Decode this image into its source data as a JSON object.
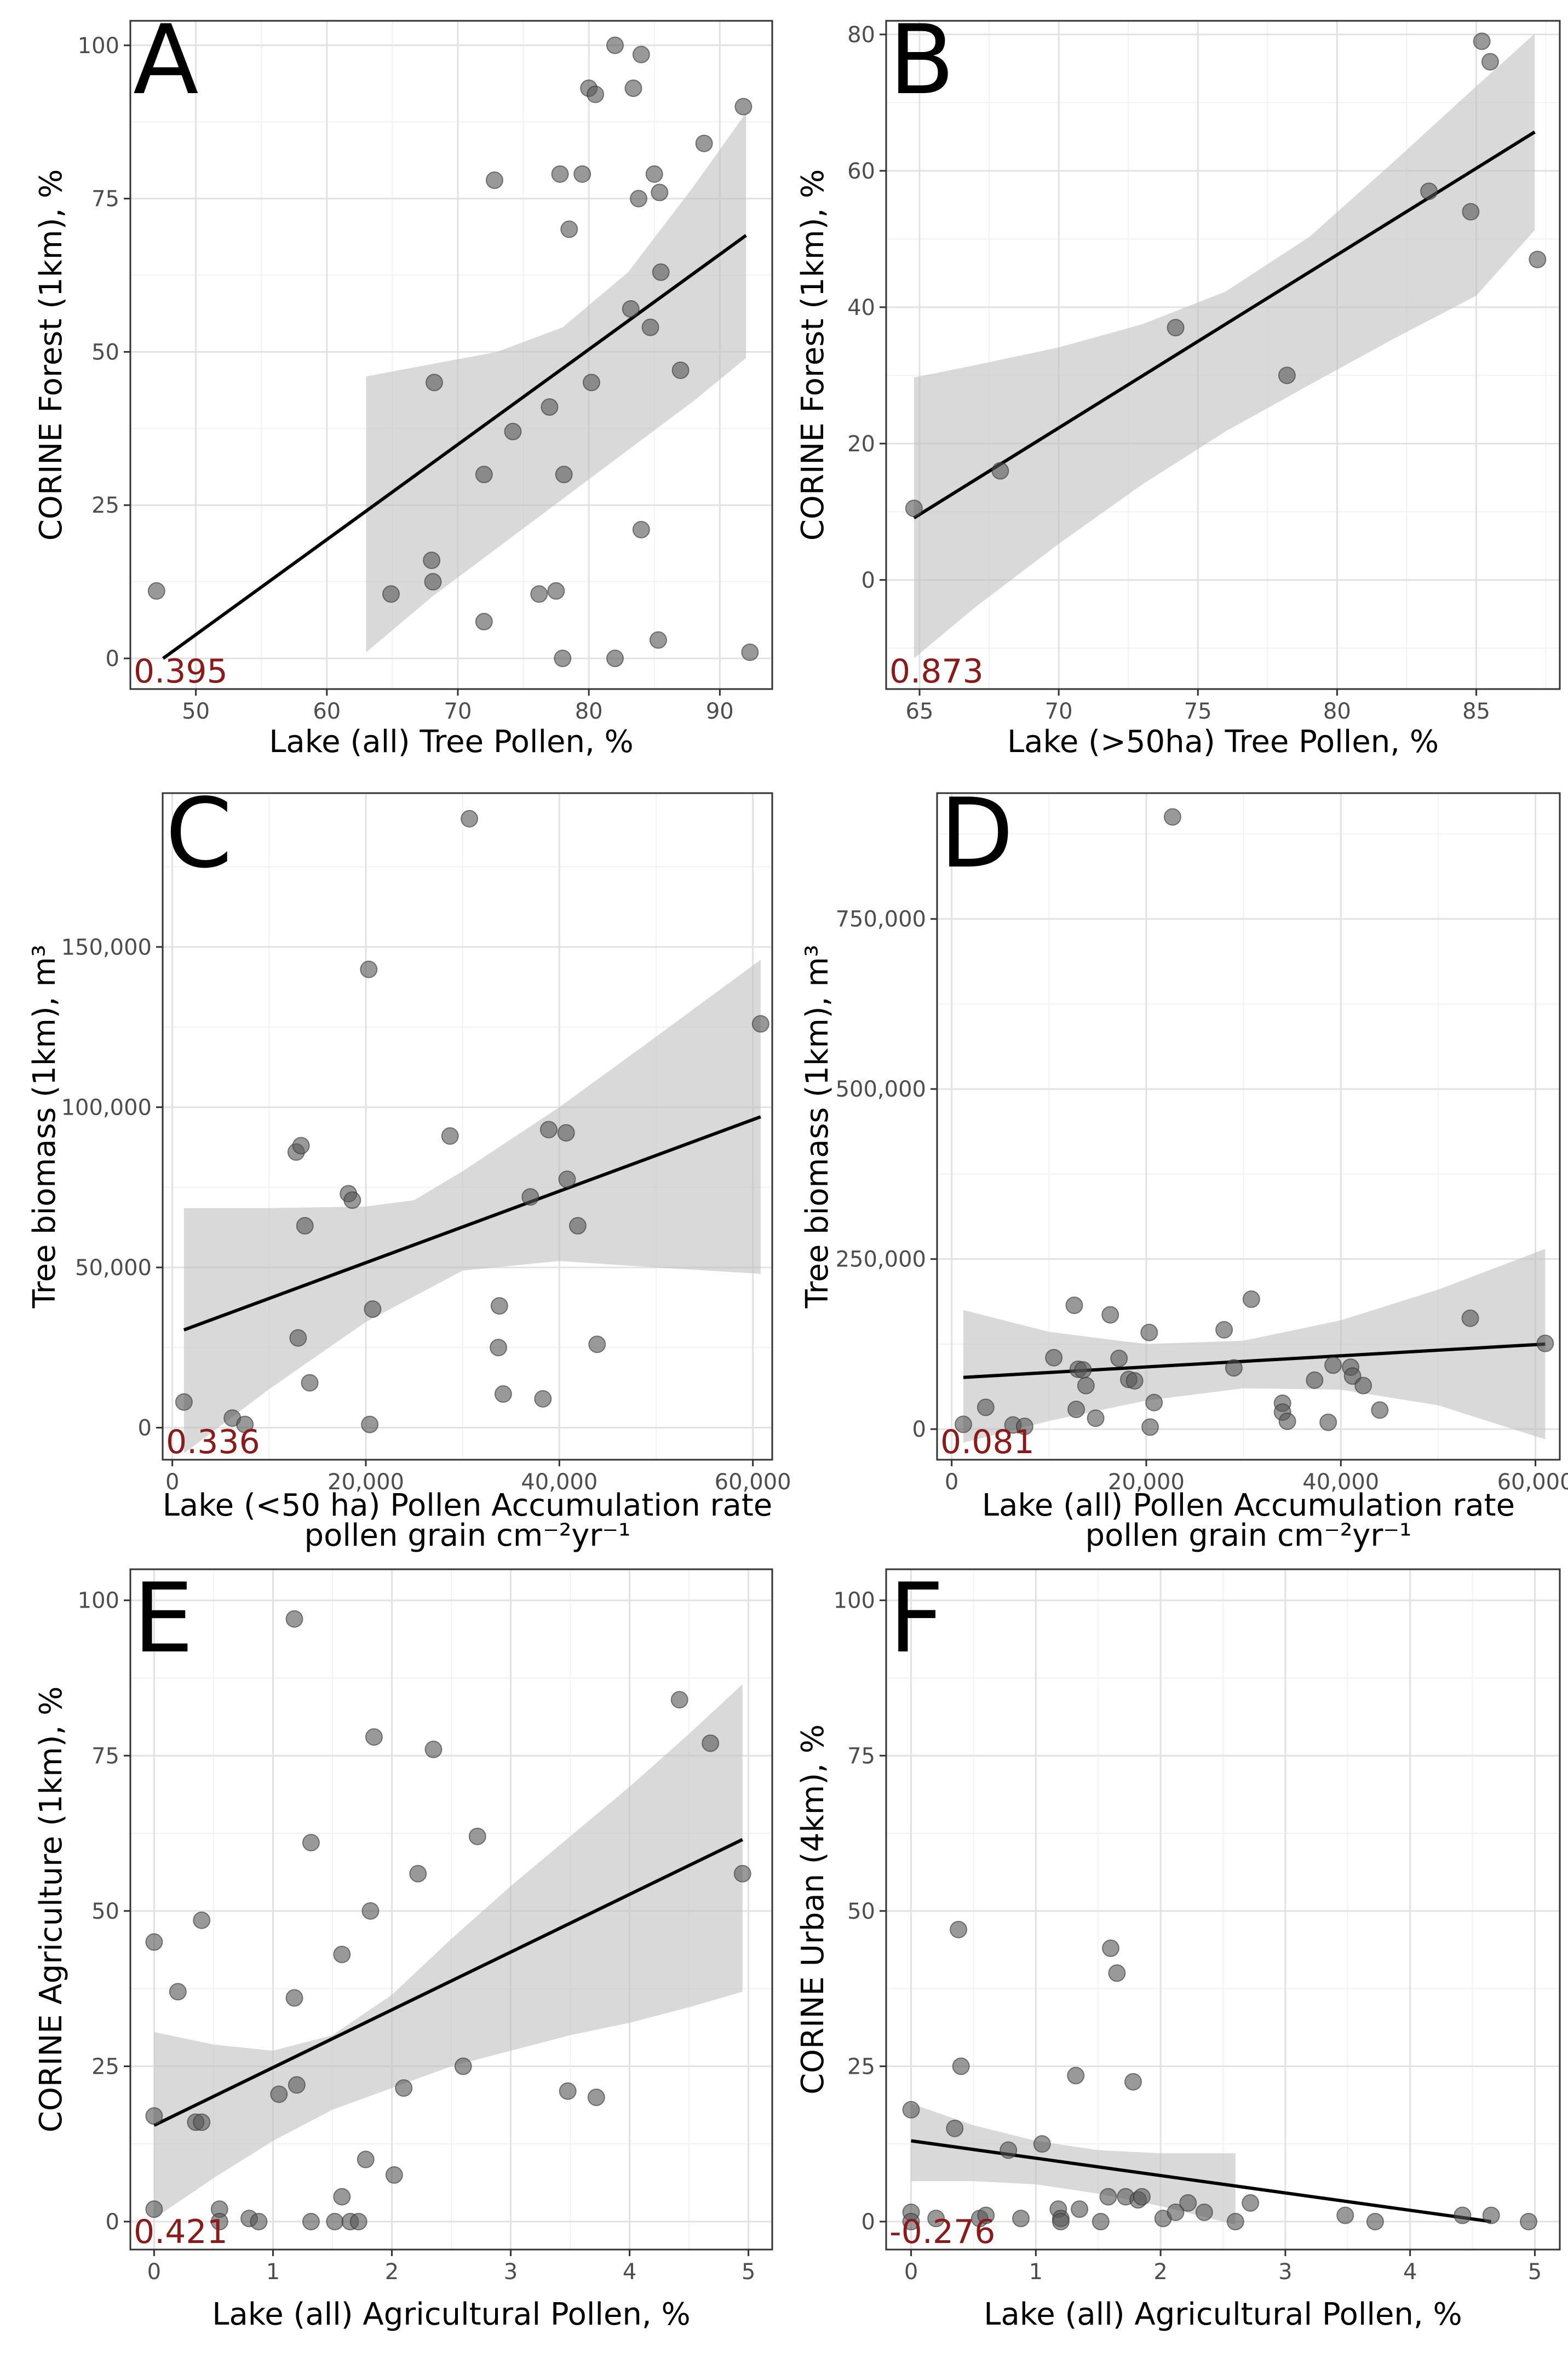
{
  "chart_data": [
    {
      "panel": "A",
      "type": "scatter",
      "xlabel": "Lake (all) Tree Pollen, %",
      "xlabel2": "",
      "ylabel": "CORINE Forest (1km), %",
      "xlim": [
        45,
        94
      ],
      "ylim": [
        -5,
        104
      ],
      "xticks": [
        50,
        60,
        70,
        80,
        90
      ],
      "yticks": [
        0,
        25,
        50,
        75,
        100
      ],
      "xtick_labels": [
        "50",
        "60",
        "70",
        "80",
        "90"
      ],
      "ytick_labels": [
        "0",
        "25",
        "50",
        "75",
        "100"
      ],
      "r": "0.395",
      "fit": {
        "x": [
          47.5,
          92
        ],
        "y": [
          0,
          69
        ]
      },
      "band": {
        "x": [
          63,
          68,
          73,
          78,
          83,
          88,
          92
        ],
        "upper": [
          46,
          48,
          50,
          54,
          63,
          77,
          89
        ],
        "lower": [
          1,
          10,
          18,
          26,
          34,
          42,
          49
        ]
      },
      "points": [
        [
          47,
          11
        ],
        [
          64.9,
          10.5
        ],
        [
          68,
          16
        ],
        [
          68.1,
          12.5
        ],
        [
          68.2,
          45
        ],
        [
          72,
          6
        ],
        [
          72,
          30
        ],
        [
          72.8,
          78
        ],
        [
          74.2,
          37
        ],
        [
          76.2,
          10.5
        ],
        [
          77,
          41
        ],
        [
          77.5,
          11
        ],
        [
          77.8,
          79
        ],
        [
          78,
          0
        ],
        [
          78.1,
          30
        ],
        [
          78.5,
          70
        ],
        [
          79.5,
          79
        ],
        [
          80,
          93
        ],
        [
          80.2,
          45
        ],
        [
          80.5,
          92
        ],
        [
          82,
          0
        ],
        [
          82,
          100
        ],
        [
          83.2,
          57
        ],
        [
          83.4,
          93
        ],
        [
          83.8,
          75
        ],
        [
          84,
          21
        ],
        [
          84,
          98.5
        ],
        [
          84.7,
          54
        ],
        [
          85,
          79
        ],
        [
          85.3,
          3
        ],
        [
          85.4,
          76
        ],
        [
          85.5,
          63
        ],
        [
          87,
          47
        ],
        [
          88.8,
          84
        ],
        [
          91.8,
          90
        ],
        [
          92.3,
          1
        ]
      ]
    },
    {
      "panel": "B",
      "type": "scatter",
      "xlabel": "Lake (>50ha) Tree Pollen, %",
      "xlabel2": "",
      "ylabel": "CORINE Forest (1km), %",
      "xlim": [
        63.8,
        88
      ],
      "ylim": [
        -16,
        82
      ],
      "xticks": [
        65,
        70,
        75,
        80,
        85
      ],
      "yticks": [
        0,
        20,
        40,
        60,
        80
      ],
      "xtick_labels": [
        "65",
        "70",
        "75",
        "80",
        "85"
      ],
      "ytick_labels": [
        "0",
        "20",
        "40",
        "60",
        "80"
      ],
      "r": "0.873",
      "fit": {
        "x": [
          64.8,
          87.1
        ],
        "y": [
          9.1,
          65.7
        ]
      },
      "band": {
        "x": [
          64.8,
          67,
          70,
          73,
          76,
          79,
          82,
          85,
          87.1
        ],
        "upper": [
          29.7,
          31.5,
          34.1,
          37.5,
          42.3,
          50.3,
          61.2,
          72.4,
          80.1
        ],
        "lower": [
          -11.5,
          -4,
          5.3,
          14,
          21.8,
          28.6,
          35.3,
          41.7,
          51.3
        ]
      },
      "points": [
        [
          64.8,
          10.5
        ],
        [
          67.9,
          16
        ],
        [
          74.2,
          37
        ],
        [
          78.2,
          30
        ],
        [
          83.3,
          57
        ],
        [
          84.8,
          54
        ],
        [
          85.2,
          79
        ],
        [
          85.5,
          76
        ],
        [
          87.2,
          47
        ]
      ]
    },
    {
      "panel": "C",
      "type": "scatter",
      "xlabel": "Lake (<50 ha) Pollen Accumulation rate",
      "xlabel2": "pollen grain cm⁻²yr⁻¹",
      "ylabel": "Tree biomass (1km), m³",
      "xlim": [
        -1000,
        62000
      ],
      "ylim": [
        -10000,
        198000
      ],
      "xticks": [
        0,
        20000,
        40000,
        60000
      ],
      "yticks": [
        0,
        50000,
        100000,
        150000
      ],
      "xtick_labels": [
        "0",
        "20,000",
        "40,000",
        "60,000"
      ],
      "ytick_labels": [
        "0",
        "50,000",
        "100,000",
        "150,000"
      ],
      "r": "0.336",
      "fit": {
        "x": [
          1200,
          60800
        ],
        "y": [
          30500,
          97000
        ]
      },
      "band": {
        "x": [
          1200,
          10000,
          20000,
          25000,
          30000,
          40000,
          50000,
          60800
        ],
        "upper": [
          68500,
          68500,
          69000,
          71000,
          80000,
          100000,
          122000,
          146000
        ],
        "lower": [
          -8000,
          12000,
          33000,
          41000,
          49000,
          52000,
          50000,
          48000
        ]
      },
      "points": [
        [
          1200,
          8000
        ],
        [
          6200,
          3000
        ],
        [
          7500,
          1000
        ],
        [
          12800,
          86000
        ],
        [
          13000,
          28000
        ],
        [
          13300,
          88000
        ],
        [
          13700,
          63000
        ],
        [
          14200,
          14000
        ],
        [
          18200,
          73000
        ],
        [
          18600,
          71000
        ],
        [
          20300,
          143000
        ],
        [
          20400,
          1000
        ],
        [
          20700,
          37000
        ],
        [
          28700,
          91000
        ],
        [
          30700,
          190000
        ],
        [
          33700,
          25000
        ],
        [
          33800,
          38000
        ],
        [
          34200,
          10500
        ],
        [
          37000,
          72000
        ],
        [
          38300,
          9000
        ],
        [
          38900,
          93000
        ],
        [
          40700,
          92000
        ],
        [
          40800,
          77500
        ],
        [
          41900,
          63000
        ],
        [
          43900,
          26000
        ],
        [
          60800,
          126000
        ]
      ]
    },
    {
      "panel": "D",
      "type": "scatter",
      "xlabel": "Lake (all) Pollen Accumulation rate",
      "xlabel2": "pollen grain cm⁻²yr⁻¹",
      "ylabel": "Tree biomass (1km), m³",
      "xlim": [
        -1500,
        62500
      ],
      "ylim": [
        -45000,
        935000
      ],
      "xticks": [
        0,
        20000,
        40000,
        60000
      ],
      "yticks": [
        0,
        250000,
        500000,
        750000
      ],
      "xtick_labels": [
        "0",
        "20,000",
        "40,000",
        "60,000"
      ],
      "ytick_labels": [
        "0",
        "250,000",
        "500,000",
        "750,000"
      ],
      "r": "0.081",
      "fit": {
        "x": [
          1200,
          61000
        ],
        "y": [
          76000,
          125000
        ]
      },
      "band": {
        "x": [
          1200,
          10000,
          20000,
          30000,
          40000,
          50000,
          61000
        ],
        "upper": [
          175000,
          143000,
          125000,
          130000,
          160000,
          205000,
          265000
        ],
        "lower": [
          -20000,
          12000,
          42000,
          60000,
          58000,
          35000,
          -15000
        ]
      },
      "points": [
        [
          1200,
          7000
        ],
        [
          3500,
          32000
        ],
        [
          6300,
          6000
        ],
        [
          7500,
          4000
        ],
        [
          10500,
          105000
        ],
        [
          12600,
          182000
        ],
        [
          12800,
          29000
        ],
        [
          13000,
          88000
        ],
        [
          13500,
          87000
        ],
        [
          13800,
          64000
        ],
        [
          14800,
          16000
        ],
        [
          16300,
          168000
        ],
        [
          17200,
          104000
        ],
        [
          18200,
          73000
        ],
        [
          18800,
          71000
        ],
        [
          20300,
          142000
        ],
        [
          20400,
          3000
        ],
        [
          20800,
          39000
        ],
        [
          22700,
          900000
        ],
        [
          28000,
          146000
        ],
        [
          29000,
          90000
        ],
        [
          30800,
          191000
        ],
        [
          34000,
          38000
        ],
        [
          34000,
          25000
        ],
        [
          34500,
          11500
        ],
        [
          37300,
          72000
        ],
        [
          38700,
          10000
        ],
        [
          39200,
          94000
        ],
        [
          41000,
          91000
        ],
        [
          41200,
          78000
        ],
        [
          42300,
          64000
        ],
        [
          44000,
          28000
        ],
        [
          53300,
          163000
        ],
        [
          61000,
          126000
        ]
      ]
    },
    {
      "panel": "E",
      "type": "scatter",
      "xlabel": "Lake (all) Agricultural Pollen, %",
      "xlabel2": "",
      "ylabel": "CORINE Agriculture (1km), %",
      "xlim": [
        -0.2,
        5.2
      ],
      "ylim": [
        -4.5,
        105
      ],
      "xticks": [
        0,
        1,
        2,
        3,
        4,
        5
      ],
      "yticks": [
        0,
        25,
        50,
        75,
        100
      ],
      "xtick_labels": [
        "0",
        "1",
        "2",
        "3",
        "4",
        "5"
      ],
      "ytick_labels": [
        "0",
        "25",
        "50",
        "75",
        "100"
      ],
      "r": "0.421",
      "fit": {
        "x": [
          0,
          4.95
        ],
        "y": [
          15.5,
          61.5
        ]
      },
      "band": {
        "x": [
          0,
          0.5,
          1,
          1.5,
          2,
          2.5,
          3,
          3.5,
          4,
          4.5,
          4.95
        ],
        "upper": [
          30.5,
          28.5,
          27.5,
          30,
          36.5,
          45.5,
          54,
          62,
          70,
          78.5,
          86.5
        ],
        "lower": [
          0.5,
          7,
          13,
          18,
          21.5,
          25,
          27.5,
          30,
          32,
          34.5,
          37
        ]
      },
      "points": [
        [
          0,
          45
        ],
        [
          0,
          17
        ],
        [
          0,
          2
        ],
        [
          0.2,
          37
        ],
        [
          0.35,
          16
        ],
        [
          0.4,
          16
        ],
        [
          0.4,
          48.5
        ],
        [
          0.55,
          2
        ],
        [
          0.55,
          0
        ],
        [
          0.8,
          0.5
        ],
        [
          0.88,
          0
        ],
        [
          1.05,
          20.5
        ],
        [
          1.18,
          97
        ],
        [
          1.18,
          36
        ],
        [
          1.2,
          22
        ],
        [
          1.32,
          61
        ],
        [
          1.32,
          0
        ],
        [
          1.52,
          0
        ],
        [
          1.58,
          43
        ],
        [
          1.58,
          4
        ],
        [
          1.65,
          0
        ],
        [
          1.72,
          0
        ],
        [
          1.78,
          10
        ],
        [
          1.82,
          50
        ],
        [
          1.85,
          78
        ],
        [
          2.02,
          7.5
        ],
        [
          2.1,
          21.5
        ],
        [
          2.22,
          56
        ],
        [
          2.35,
          76
        ],
        [
          2.6,
          25
        ],
        [
          2.72,
          62
        ],
        [
          3.48,
          21
        ],
        [
          3.72,
          20
        ],
        [
          4.42,
          84
        ],
        [
          4.68,
          77
        ],
        [
          4.95,
          56
        ]
      ]
    },
    {
      "panel": "F",
      "type": "scatter",
      "xlabel": "Lake (all) Agricultural Pollen, %",
      "xlabel2": "",
      "ylabel": "CORINE Urban (4km), %",
      "xlim": [
        -0.2,
        5.2
      ],
      "ylim": [
        -4.5,
        105
      ],
      "xticks": [
        0,
        1,
        2,
        3,
        4,
        5
      ],
      "yticks": [
        0,
        25,
        50,
        75,
        100
      ],
      "xtick_labels": [
        "0",
        "1",
        "2",
        "3",
        "4",
        "5"
      ],
      "ytick_labels": [
        "0",
        "25",
        "50",
        "75",
        "100"
      ],
      "r": "-0.276",
      "fit": {
        "x": [
          0,
          4.65
        ],
        "y": [
          13,
          0
        ]
      },
      "band": {
        "x": [
          0,
          0.5,
          1,
          1.5,
          2,
          2.6
        ],
        "upper": [
          19,
          15.5,
          13,
          11.5,
          11,
          11
        ],
        "lower": [
          6.5,
          6.5,
          6,
          4.5,
          2.5,
          -0.5
        ]
      },
      "points": [
        [
          0,
          18
        ],
        [
          0,
          1.5
        ],
        [
          0,
          0
        ],
        [
          0.2,
          0.5
        ],
        [
          0.35,
          15
        ],
        [
          0.38,
          47
        ],
        [
          0.4,
          25
        ],
        [
          0.55,
          0.5
        ],
        [
          0.6,
          1
        ],
        [
          0.78,
          11.5
        ],
        [
          0.88,
          0.5
        ],
        [
          1.05,
          12.5
        ],
        [
          1.18,
          2
        ],
        [
          1.2,
          0.5
        ],
        [
          1.2,
          0
        ],
        [
          1.32,
          23.5
        ],
        [
          1.35,
          2
        ],
        [
          1.52,
          0
        ],
        [
          1.58,
          4
        ],
        [
          1.6,
          44
        ],
        [
          1.65,
          40
        ],
        [
          1.72,
          4
        ],
        [
          1.78,
          22.5
        ],
        [
          1.82,
          3.5
        ],
        [
          1.85,
          4
        ],
        [
          2.02,
          0.5
        ],
        [
          2.12,
          1.5
        ],
        [
          2.22,
          3
        ],
        [
          2.35,
          1.5
        ],
        [
          2.6,
          0
        ],
        [
          2.72,
          3
        ],
        [
          3.48,
          1
        ],
        [
          3.72,
          0
        ],
        [
          4.42,
          1
        ],
        [
          4.65,
          1
        ],
        [
          4.95,
          0
        ]
      ]
    }
  ]
}
